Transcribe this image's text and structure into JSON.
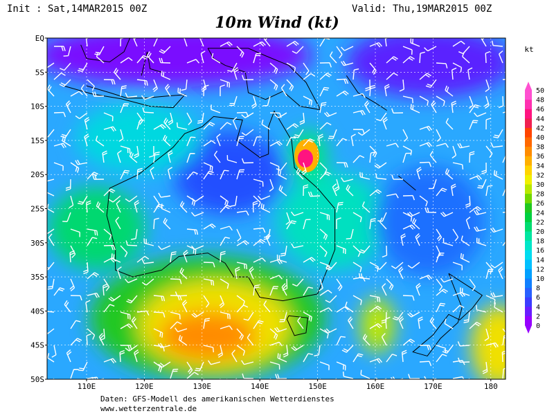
{
  "header": {
    "init": "Init : Sat,14MAR2015 00Z",
    "valid": "Valid: Thu,19MAR2015 00Z",
    "title": "10m Wind (kt)"
  },
  "map": {
    "lat_labels": [
      "EQ",
      "5S",
      "10S",
      "15S",
      "20S",
      "25S",
      "30S",
      "35S",
      "40S",
      "45S",
      "50S"
    ],
    "lon_labels": [
      "110E",
      "120E",
      "130E",
      "140E",
      "150E",
      "160E",
      "170E",
      "180"
    ]
  },
  "colorbar": {
    "unit": "kt",
    "labels": [
      0,
      2,
      4,
      6,
      8,
      10,
      12,
      14,
      16,
      18,
      20,
      22,
      24,
      26,
      28,
      30,
      32,
      34,
      36,
      38,
      40,
      42,
      44,
      46,
      48,
      50
    ],
    "colors": [
      "#9600ff",
      "#6a1cff",
      "#3c3cff",
      "#2860ff",
      "#1080ff",
      "#00a0ff",
      "#00c0ff",
      "#00dcf0",
      "#00e6c8",
      "#00e6a0",
      "#00dc70",
      "#00d040",
      "#20c820",
      "#70d800",
      "#b8e800",
      "#f0f000",
      "#ffd400",
      "#ffb000",
      "#ff8c00",
      "#ff6800",
      "#ff4400",
      "#f02050",
      "#ff1480",
      "#ff30b0",
      "#ff50d0"
    ]
  },
  "footer": {
    "line1": "Daten: GFS-Modell des amerikanischen Wetterdienstes",
    "line2": "www.wetterzentrale.de"
  }
}
